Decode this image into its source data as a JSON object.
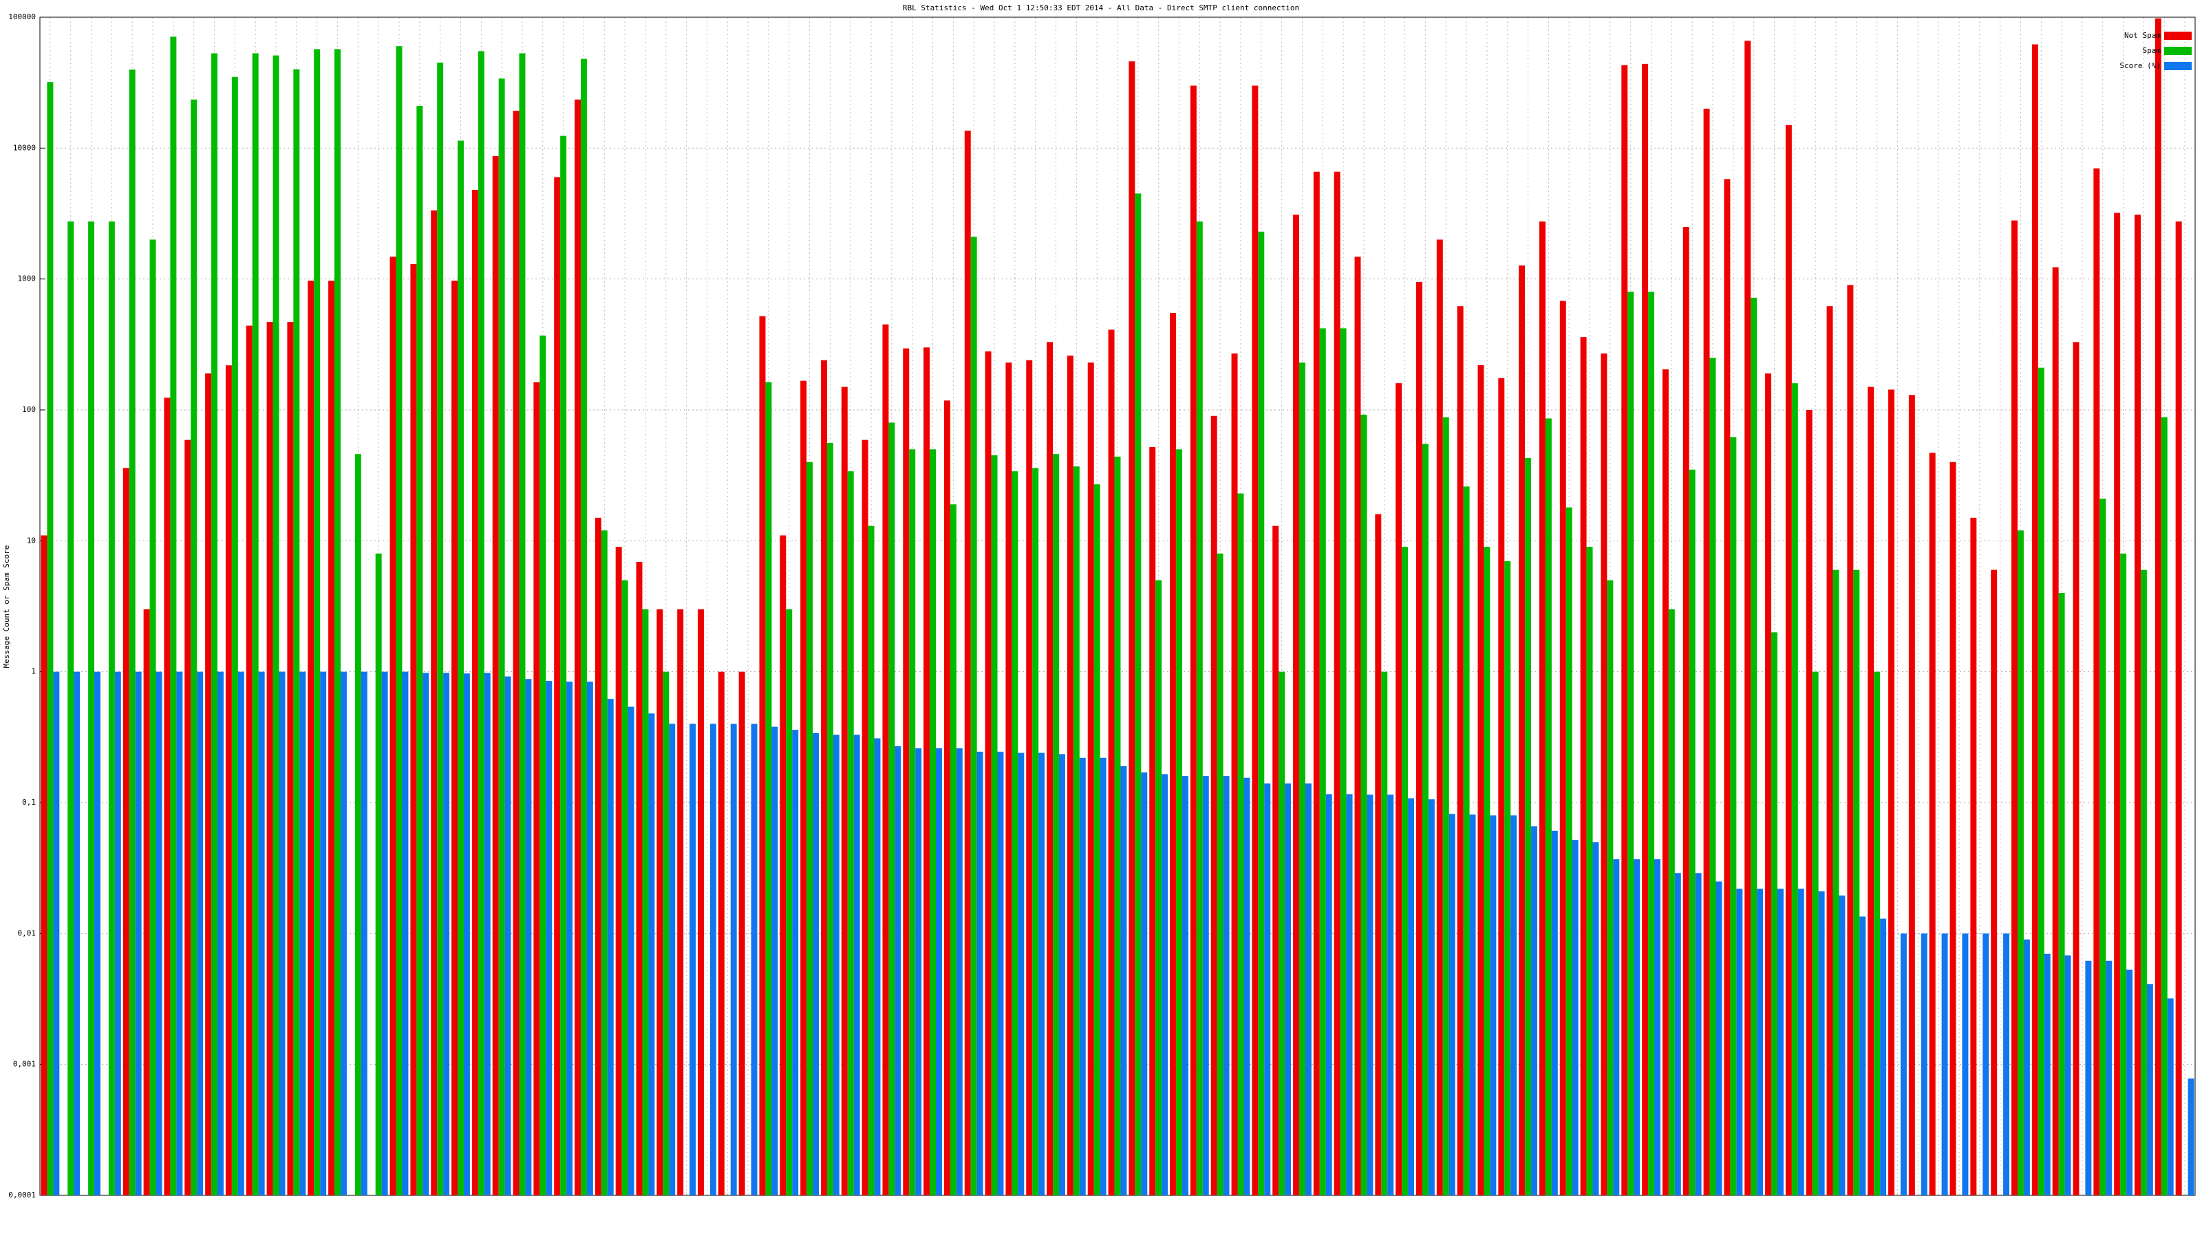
{
  "chart_data": {
    "type": "bar",
    "title": "RBL Statistics - Wed Oct  1 12:50:33 EDT 2014 - All Data - Direct SMTP client connection",
    "y_label": "Message Count or Spam Score",
    "log": true,
    "grid": true,
    "legend": "top-right",
    "categories": [
      null,
      null,
      null,
      null,
      null,
      null,
      null,
      null,
      null,
      null,
      null,
      null,
      null,
      null,
      null,
      null,
      null,
      null,
      null,
      null,
      null,
      null,
      null,
      null,
      null,
      null,
      null,
      null,
      null,
      null,
      null,
      null,
      null,
      null,
      null,
      null,
      null,
      null,
      null,
      null,
      null,
      null,
      null,
      null,
      null,
      null,
      null,
      null,
      null,
      null,
      null,
      null,
      null,
      null,
      null,
      null,
      null,
      null,
      null,
      null,
      null,
      null,
      null,
      null,
      null,
      null,
      null,
      null,
      null,
      null,
      null,
      null,
      null,
      null,
      null,
      null,
      null,
      null,
      null,
      null,
      null,
      null,
      null,
      null,
      null,
      null,
      null,
      null,
      null,
      null,
      null,
      null,
      null,
      null,
      null,
      null,
      null,
      null,
      null,
      null,
      null,
      null,
      null,
      null,
      null
    ],
    "series": [
      {
        "name": "Not Spam",
        "color": "#ee0000",
        "values": [
          11,
          null,
          null,
          null,
          36,
          3,
          124,
          59,
          190,
          219,
          440,
          470,
          470,
          970,
          970,
          null,
          null,
          1480,
          1300,
          3340,
          970,
          4800,
          8700,
          19300,
          163,
          6000,
          23500,
          15,
          9,
          6.9,
          3,
          3,
          3,
          1,
          1,
          520,
          11,
          167,
          240,
          150,
          59,
          450,
          295,
          300,
          118,
          13600,
          280,
          230,
          240,
          330,
          260,
          230,
          410,
          46000,
          52,
          550,
          30000,
          90,
          270,
          30000,
          13,
          3100,
          6600,
          6600,
          1480,
          16,
          160,
          950,
          2000,
          620,
          220,
          175,
          1270,
          2750,
          680,
          360,
          270,
          43000,
          44000,
          204,
          2500,
          20000,
          5800,
          66000,
          190,
          15000,
          100,
          620,
          900,
          150,
          143,
          130,
          47,
          40,
          15,
          6,
          2800,
          62000,
          1230,
          330,
          7000,
          3200,
          3100,
          98000,
          2750
        ]
      },
      {
        "name": "Spam",
        "color": "#00bb00",
        "values": [
          32000,
          2750,
          2750,
          2750,
          39800,
          2000,
          71000,
          23500,
          53000,
          35000,
          53000,
          51000,
          40000,
          57000,
          57000,
          46,
          8,
          60000,
          21000,
          45000,
          11400,
          55000,
          34000,
          53000,
          370,
          12400,
          48000,
          12,
          5,
          3,
          1,
          null,
          null,
          null,
          null,
          163,
          3,
          40,
          56,
          34,
          13,
          80,
          50,
          50,
          19,
          2100,
          45,
          34,
          36,
          46,
          37,
          27,
          44,
          4500,
          5,
          50,
          2750,
          8,
          23,
          2300,
          1,
          230,
          420,
          420,
          92,
          1,
          9,
          55,
          88,
          26,
          9,
          7,
          43,
          86,
          18,
          9,
          5,
          800,
          800,
          3,
          35,
          250,
          62,
          720,
          2,
          160,
          1,
          6,
          6,
          1,
          null,
          null,
          null,
          null,
          null,
          null,
          12,
          210,
          4,
          null,
          21,
          8,
          6,
          88,
          null
        ]
      },
      {
        "name": "Score (%)",
        "color": "#1177ee",
        "values": [
          1,
          1,
          1,
          1,
          1,
          1,
          1,
          1,
          1,
          1,
          1,
          1,
          1,
          1,
          1,
          1,
          1,
          1,
          0.98,
          0.98,
          0.97,
          0.98,
          0.92,
          0.88,
          0.85,
          0.84,
          0.84,
          0.62,
          0.54,
          0.48,
          0.4,
          0.4,
          0.4,
          0.4,
          0.4,
          0.38,
          0.36,
          0.34,
          0.33,
          0.33,
          0.31,
          0.27,
          0.26,
          0.26,
          0.26,
          0.245,
          0.245,
          0.24,
          0.24,
          0.235,
          0.22,
          0.22,
          0.19,
          0.17,
          0.165,
          0.16,
          0.16,
          0.16,
          0.155,
          0.14,
          0.14,
          0.14,
          0.116,
          0.116,
          0.115,
          0.115,
          0.108,
          0.106,
          0.082,
          0.081,
          0.08,
          0.08,
          0.066,
          0.061,
          0.052,
          0.05,
          0.037,
          0.037,
          0.037,
          0.029,
          0.029,
          0.025,
          0.022,
          0.022,
          0.022,
          0.022,
          0.021,
          0.0195,
          0.0135,
          0.013,
          0.01,
          0.01,
          0.01,
          0.01,
          0.01,
          0.01,
          0.009,
          0.007,
          0.0068,
          0.0062,
          0.0062,
          0.0053,
          0.0041,
          0.0032,
          0.00078
        ]
      }
    ],
    "ylim": [
      0.0001,
      100000
    ],
    "yticks": [
      {
        "value": 0.0001,
        "label": "0,0001"
      },
      {
        "value": 0.001,
        "label": "0,001"
      },
      {
        "value": 0.01,
        "label": "0,01"
      },
      {
        "value": 0.1,
        "label": "0,1"
      },
      1,
      10,
      100,
      1000,
      10000,
      100000
    ]
  }
}
